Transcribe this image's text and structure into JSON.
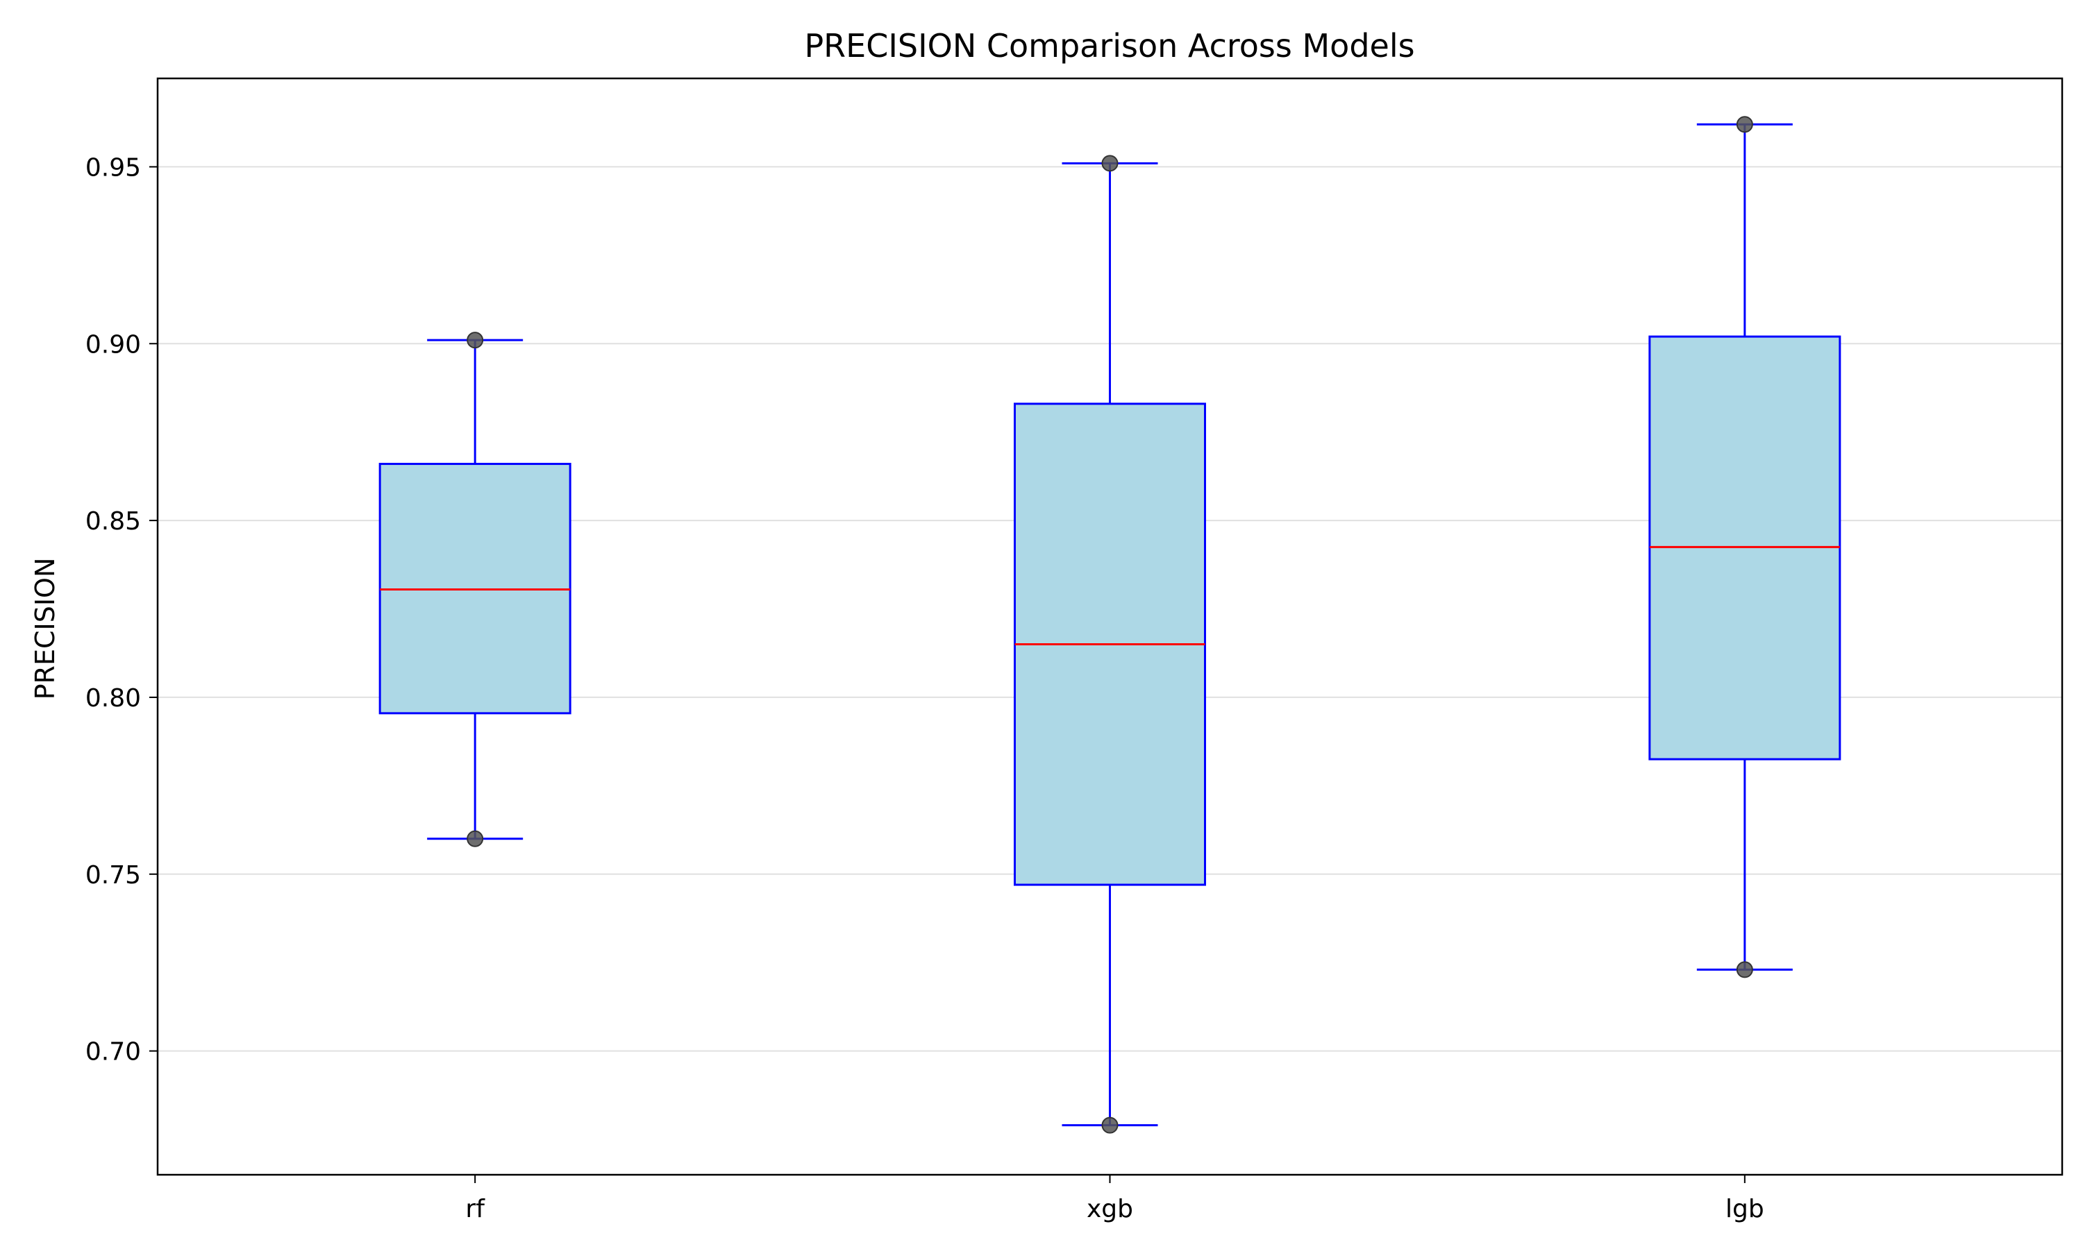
{
  "chart_data": {
    "type": "box",
    "title": "PRECISION Comparison Across Models",
    "xlabel": "",
    "ylabel": "PRECISION",
    "categories": [
      "rf",
      "xgb",
      "lgb"
    ],
    "ylim": [
      0.665,
      0.975
    ],
    "yticks": [
      0.7,
      0.75,
      0.8,
      0.85,
      0.9,
      0.95
    ],
    "ytick_labels": [
      "0.70",
      "0.75",
      "0.80",
      "0.85",
      "0.90",
      "0.95"
    ],
    "grid": {
      "y": true,
      "x": false
    },
    "series": [
      {
        "category": "rf",
        "whisker_low": 0.76,
        "q1": 0.7955,
        "median": 0.8305,
        "q3": 0.866,
        "whisker_high": 0.901,
        "points": [
          0.76,
          0.901
        ]
      },
      {
        "category": "xgb",
        "whisker_low": 0.679,
        "q1": 0.747,
        "median": 0.815,
        "q3": 0.883,
        "whisker_high": 0.951,
        "points": [
          0.679,
          0.951
        ]
      },
      {
        "category": "lgb",
        "whisker_low": 0.723,
        "q1": 0.7825,
        "median": 0.8425,
        "q3": 0.902,
        "whisker_high": 0.962,
        "points": [
          0.723,
          0.962
        ]
      }
    ],
    "colors": {
      "box_fill": "#add8e6",
      "box_edge": "#0000ff",
      "whisker": "#0000ff",
      "median": "#ff0000",
      "point": "#555555",
      "grid": "#e0e0e0",
      "axes": "#000000"
    }
  }
}
